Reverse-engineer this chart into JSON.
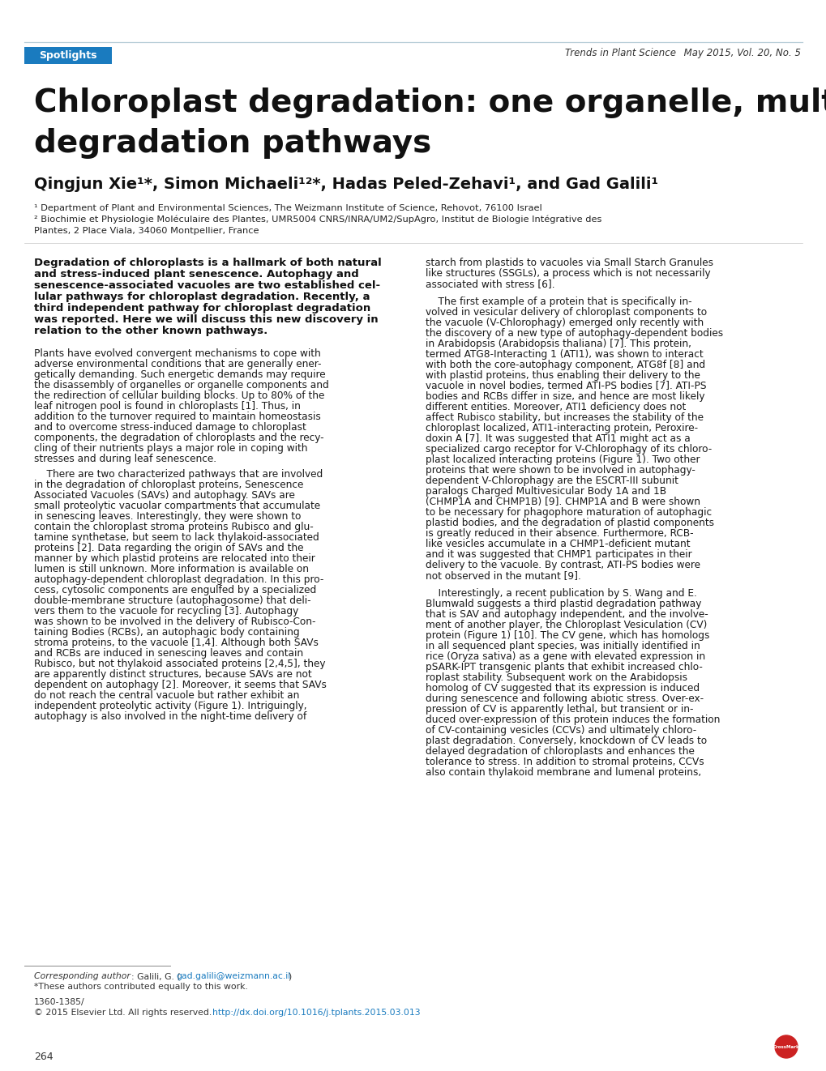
{
  "bg_color": "#ffffff",
  "spotlight_bg": "#1a7bbf",
  "spotlight_text": "Spotlights",
  "header_journal": "Trends in Plant Science  May 2015, Vol. 20, No. 5",
  "title_line1": "Chloroplast degradation: one organelle, multiple",
  "title_line2": "degradation pathways",
  "author_main": "Qingjun Xie",
  "author_rest": ", Simon Michaeli",
  "author_rest2": ", Hadas Peled-Zehavi",
  "author_rest3": ", and Gad Galili",
  "affil1": "¹ Department of Plant and Environmental Sciences, The Weizmann Institute of Science, Rehovot, 76100 Israel",
  "affil2": "² Biochimie et Physiologie Moléculaire des Plantes, UMR5004 CNRS/INRA/UM2/SupAgro, Institut de Biologie Intégrative des",
  "affil3": "Plantes, 2 Place Viala, 34060 Montpellier, France",
  "ref_color": "#1a7bbf",
  "body_color": "#1a1a1a",
  "footnote_issn": "1360-1385/",
  "footnote_copy_pre": "© 2015 Elsevier Ltd. All rights reserved. ",
  "footnote_copy_link": "http://dx.doi.org/10.1016/j.tplants.2015.03.013",
  "page_num": "264"
}
